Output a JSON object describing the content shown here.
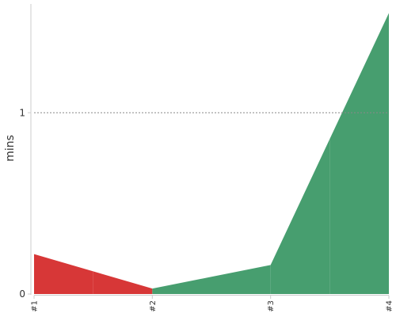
{
  "chart_data": {
    "type": "area",
    "title": "",
    "xlabel": "",
    "ylabel": "mins",
    "categories": [
      "#1",
      "#2",
      "#3",
      "#4"
    ],
    "values": [
      0.22,
      0.03,
      0.16,
      1.55
    ],
    "ylim": [
      0,
      1.6
    ],
    "yticks": [
      {
        "value": 0,
        "label": "0"
      },
      {
        "value": 1,
        "label": "1"
      }
    ],
    "gridlines": [
      1
    ],
    "grid": "dashed horizontal at 1",
    "segment_colors": {
      "up": "#479e6f",
      "down": "#d73737"
    },
    "axis_color": "#cccccc",
    "grid_color": "#888888"
  }
}
